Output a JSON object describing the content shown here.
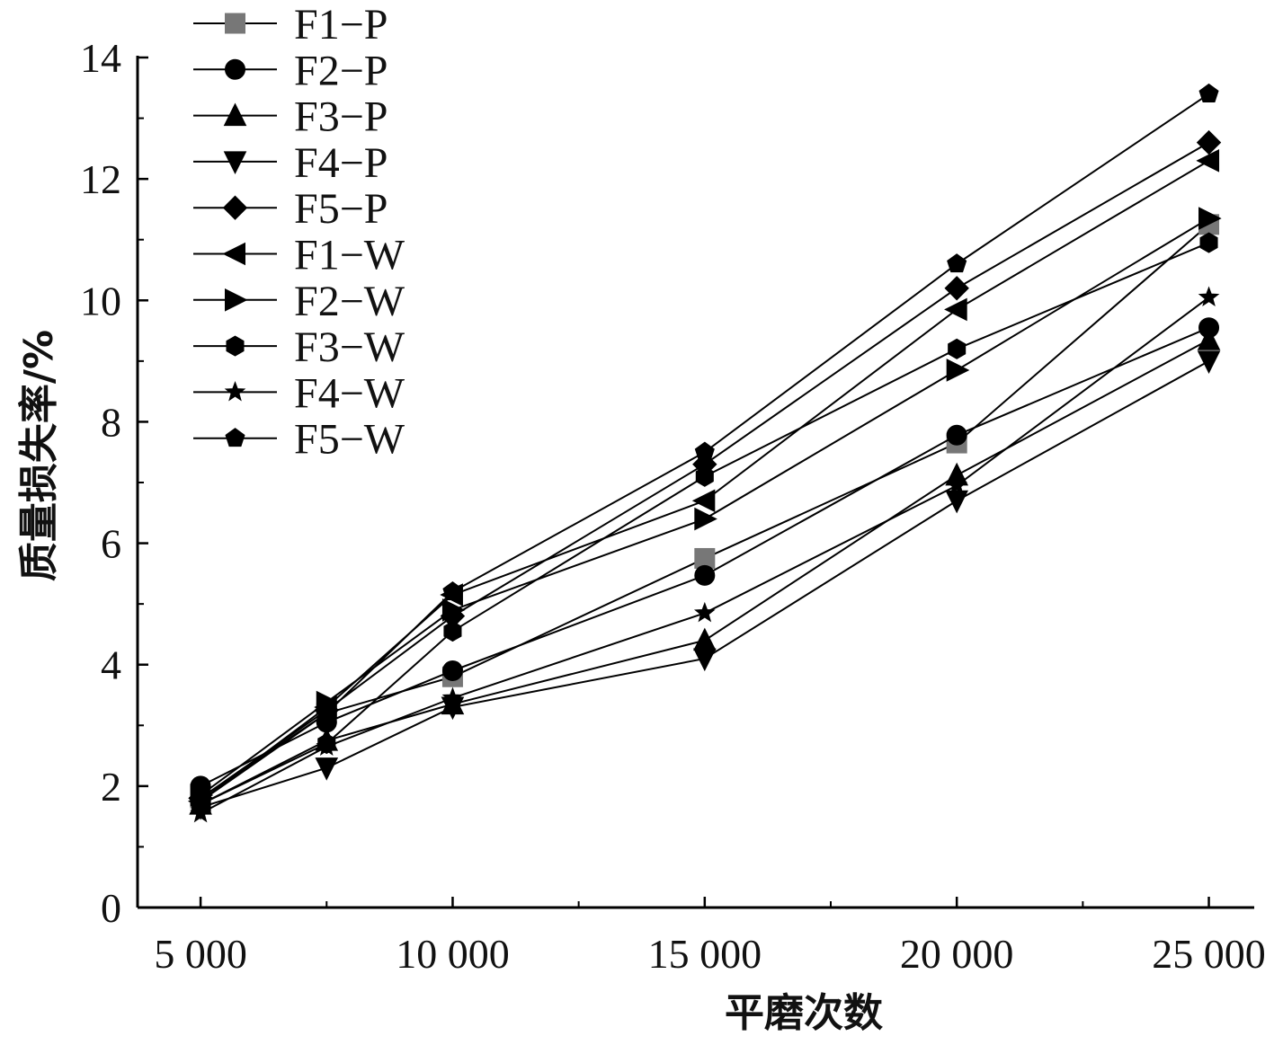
{
  "chart_data": {
    "type": "line",
    "xlabel": "平磨次数",
    "ylabel": "质量损失率/%",
    "x": [
      5000,
      7500,
      10000,
      15000,
      20000,
      25000
    ],
    "x_tick_values": [
      5000,
      10000,
      15000,
      20000,
      25000
    ],
    "x_tick_labels": [
      "5 000",
      "10 000",
      "15 000",
      "20 000",
      "25 000"
    ],
    "xlim": [
      3750,
      25900
    ],
    "y_ticks": [
      0,
      2,
      4,
      6,
      8,
      10,
      12,
      14
    ],
    "ylim": [
      0,
      14
    ],
    "legend_position": "top-left",
    "series": [
      {
        "name": "F1−P",
        "marker": "square",
        "color": "#777777",
        "values": [
          1.8,
          3.2,
          3.8,
          5.75,
          7.65,
          11.25
        ]
      },
      {
        "name": "F2−P",
        "marker": "circle",
        "color": "#000000",
        "values": [
          2.0,
          3.05,
          3.9,
          5.47,
          7.78,
          9.55
        ]
      },
      {
        "name": "F3−P",
        "marker": "triangle-up",
        "color": "#000000",
        "values": [
          1.7,
          2.75,
          3.35,
          4.4,
          7.12,
          9.35
        ]
      },
      {
        "name": "F4−P",
        "marker": "triangle-down",
        "color": "#000000",
        "values": [
          1.65,
          2.3,
          3.3,
          4.1,
          6.7,
          9.0
        ]
      },
      {
        "name": "F5−P",
        "marker": "diamond",
        "color": "#000000",
        "values": [
          1.8,
          3.25,
          4.8,
          7.3,
          10.2,
          12.6
        ]
      },
      {
        "name": "F1−W",
        "marker": "triangle-left",
        "color": "#000000",
        "values": [
          1.75,
          3.3,
          5.15,
          6.7,
          9.85,
          12.3
        ]
      },
      {
        "name": "F2−W",
        "marker": "triangle-right",
        "color": "#000000",
        "values": [
          1.85,
          3.38,
          4.9,
          6.4,
          8.85,
          11.35
        ]
      },
      {
        "name": "F3−W",
        "marker": "hexagon",
        "color": "#000000",
        "values": [
          1.7,
          2.7,
          4.55,
          7.1,
          9.2,
          10.95
        ]
      },
      {
        "name": "F4−W",
        "marker": "star",
        "color": "#000000",
        "values": [
          1.55,
          2.65,
          3.45,
          4.85,
          6.95,
          10.05
        ]
      },
      {
        "name": "F5−W",
        "marker": "pentagon",
        "color": "#000000",
        "values": [
          1.75,
          3.2,
          5.2,
          7.5,
          10.6,
          13.4
        ]
      }
    ]
  }
}
